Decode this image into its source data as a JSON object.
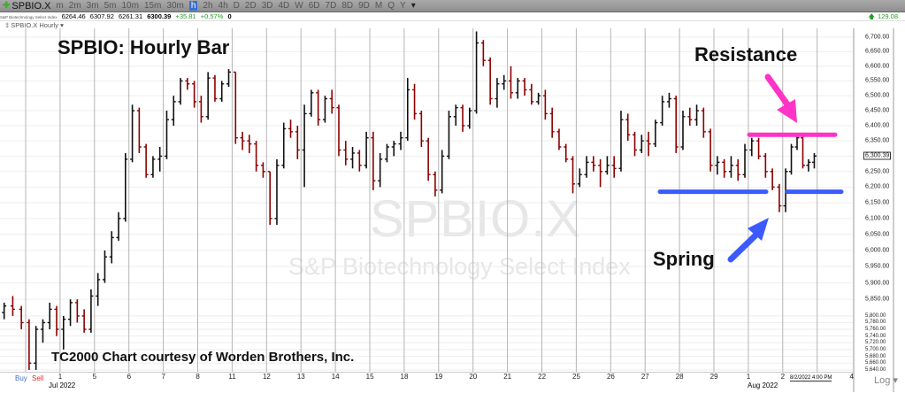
{
  "toolbar": {
    "symbol": "SPBIO.X",
    "timeframes": [
      "m",
      "2m",
      "3m",
      "5m",
      "10m",
      "15m",
      "30m",
      "h",
      "2h",
      "4h",
      "D",
      "2D",
      "3D",
      "4D",
      "W",
      "6D",
      "7D",
      "8D",
      "9D",
      "M",
      "Q",
      "Y"
    ],
    "active_timeframe": "h",
    "alert_value": "129.08"
  },
  "quote": {
    "name": "S&P Biotechnology Select Index",
    "open": "6264.46",
    "high": "6307.92",
    "low": "6261.31",
    "last": "6300.39",
    "change": "+35.81",
    "change_pct": "+0.57%",
    "volume": "0"
  },
  "chart_name": "SPBIO.X Hourly",
  "annotations": {
    "title": "SPBIO:  Hourly Bar",
    "resistance": "Resistance",
    "spring": "Spring",
    "credit": "TC2000 Chart courtesy of Worden Brothers, Inc."
  },
  "watermark": {
    "symbol": "SPBIO.X",
    "name": "S&P Biotechnology Select Index"
  },
  "footer": {
    "buy": "Buy",
    "sell": "Sell",
    "scale": "Log",
    "cursor_date": "8/2/2022 4:00 PM"
  },
  "colors": {
    "up_bar": "#111111",
    "down_bar": "#8b0000",
    "resistance": "#ff33c6",
    "support": "#3b5bff"
  },
  "chart_data": {
    "type": "ohlc",
    "title": "SPBIO:  Hourly Bar",
    "y_scale": "log",
    "ylim": [
      5640,
      6700
    ],
    "grid": true,
    "y_ticks": [
      "6,700.00",
      "6,650.00",
      "6,600.00",
      "6,550.00",
      "6,500.00",
      "6,450.00",
      "6,400.00",
      "6,350.00",
      "6,250.00",
      "6,200.00",
      "6,150.00",
      "6,100.00",
      "6,050.00",
      "6,000.00",
      "5,950.00",
      "5,900.00",
      "5,850.00",
      "5,800.00",
      "5,780.00",
      "5,760.00",
      "5,740.00",
      "5,720.00",
      "5,700.00",
      "5,680.00",
      "5,660.00",
      "5,640.00"
    ],
    "last_price_label": "6,300.39",
    "x_ticks": [
      "1",
      "5",
      "6",
      "7",
      "8",
      "11",
      "12",
      "13",
      "14",
      "15",
      "18",
      "19",
      "20",
      "21",
      "22",
      "25",
      "26",
      "27",
      "28",
      "29",
      "1",
      "2",
      "",
      "4"
    ],
    "x_month_labels": [
      "Jul 2022",
      "Aug 2022"
    ],
    "resistance_level": 6370,
    "support_level": 6185,
    "sessions": [
      [
        [
          5800,
          5830,
          5770,
          5810
        ],
        [
          5810,
          5840,
          5790,
          5830
        ],
        [
          5830,
          5860,
          5800,
          5820
        ],
        [
          5820,
          5830,
          5760,
          5780
        ]
      ],
      [
        [
          5780,
          5790,
          5640,
          5660
        ],
        [
          5660,
          5770,
          5640,
          5760
        ],
        [
          5760,
          5790,
          5720,
          5780
        ],
        [
          5780,
          5840,
          5760,
          5820
        ],
        [
          5820,
          5830,
          5740,
          5760
        ]
      ],
      [
        [
          5760,
          5800,
          5700,
          5790
        ],
        [
          5790,
          5850,
          5770,
          5840
        ],
        [
          5840,
          5850,
          5780,
          5800
        ],
        [
          5800,
          5820,
          5750,
          5760
        ],
        [
          5760,
          5880,
          5750,
          5860
        ]
      ],
      [
        [
          5860,
          5930,
          5830,
          5910
        ],
        [
          5910,
          6000,
          5900,
          5980
        ],
        [
          5980,
          6060,
          5960,
          6040
        ],
        [
          6040,
          6120,
          6030,
          6100
        ],
        [
          6100,
          6310,
          6090,
          6290
        ]
      ],
      [
        [
          6290,
          6470,
          6280,
          6450
        ],
        [
          6450,
          6460,
          6310,
          6330
        ],
        [
          6330,
          6340,
          6230,
          6240
        ],
        [
          6240,
          6300,
          6230,
          6290
        ],
        [
          6290,
          6330,
          6250,
          6300
        ]
      ],
      [
        [
          6300,
          6450,
          6290,
          6420
        ],
        [
          6420,
          6500,
          6400,
          6480
        ],
        [
          6480,
          6560,
          6470,
          6550
        ],
        [
          6550,
          6560,
          6520,
          6540
        ],
        [
          6540,
          6550,
          6460,
          6480
        ]
      ],
      [
        [
          6480,
          6500,
          6410,
          6430
        ],
        [
          6430,
          6580,
          6420,
          6560
        ],
        [
          6560,
          6570,
          6480,
          6490
        ],
        [
          6490,
          6550,
          6480,
          6540
        ],
        [
          6540,
          6590,
          6530,
          6580
        ]
      ],
      [
        [
          6580,
          6580,
          6340,
          6360
        ],
        [
          6360,
          6380,
          6320,
          6350
        ],
        [
          6350,
          6370,
          6310,
          6340
        ],
        [
          6340,
          6350,
          6250,
          6270
        ],
        [
          6270,
          6280,
          6230,
          6250
        ]
      ],
      [
        [
          6250,
          6250,
          6080,
          6100
        ],
        [
          6100,
          6290,
          6080,
          6270
        ],
        [
          6270,
          6410,
          6260,
          6390
        ],
        [
          6390,
          6420,
          6360,
          6380
        ],
        [
          6380,
          6400,
          6290,
          6320
        ]
      ],
      [
        [
          6320,
          6470,
          6200,
          6440
        ],
        [
          6440,
          6520,
          6430,
          6510
        ],
        [
          6510,
          6520,
          6400,
          6420
        ],
        [
          6420,
          6500,
          6410,
          6490
        ],
        [
          6490,
          6520,
          6440,
          6460
        ]
      ],
      [
        [
          6460,
          6470,
          6300,
          6320
        ],
        [
          6320,
          6350,
          6270,
          6290
        ],
        [
          6290,
          6330,
          6260,
          6310
        ],
        [
          6310,
          6320,
          6250,
          6270
        ],
        [
          6270,
          6380,
          6260,
          6360
        ]
      ],
      [
        [
          6360,
          6380,
          6190,
          6220
        ],
        [
          6220,
          6310,
          6200,
          6290
        ],
        [
          6290,
          6340,
          6280,
          6330
        ],
        [
          6330,
          6350,
          6300,
          6340
        ],
        [
          6340,
          6380,
          6320,
          6360
        ]
      ],
      [
        [
          6360,
          6560,
          6350,
          6520
        ],
        [
          6520,
          6540,
          6420,
          6440
        ],
        [
          6440,
          6450,
          6330,
          6350
        ],
        [
          6350,
          6360,
          6220,
          6240
        ],
        [
          6240,
          6250,
          6170,
          6190
        ]
      ],
      [
        [
          6190,
          6320,
          6180,
          6300
        ],
        [
          6300,
          6450,
          6290,
          6430
        ],
        [
          6430,
          6470,
          6400,
          6460
        ],
        [
          6460,
          6470,
          6380,
          6400
        ],
        [
          6400,
          6460,
          6390,
          6450
        ]
      ],
      [
        [
          6450,
          6720,
          6440,
          6680
        ],
        [
          6680,
          6690,
          6600,
          6620
        ],
        [
          6620,
          6630,
          6470,
          6490
        ],
        [
          6490,
          6560,
          6460,
          6540
        ],
        [
          6540,
          6570,
          6520,
          6550
        ]
      ],
      [
        [
          6550,
          6600,
          6490,
          6510
        ],
        [
          6510,
          6560,
          6490,
          6550
        ],
        [
          6550,
          6560,
          6500,
          6520
        ],
        [
          6520,
          6540,
          6470,
          6480
        ],
        [
          6480,
          6510,
          6470,
          6500
        ]
      ],
      [
        [
          6500,
          6520,
          6420,
          6440
        ],
        [
          6440,
          6460,
          6360,
          6380
        ],
        [
          6380,
          6390,
          6320,
          6330
        ],
        [
          6330,
          6340,
          6280,
          6290
        ],
        [
          6290,
          6300,
          6180,
          6210
        ]
      ],
      [
        [
          6210,
          6260,
          6200,
          6240
        ],
        [
          6240,
          6300,
          6230,
          6280
        ],
        [
          6280,
          6300,
          6250,
          6270
        ],
        [
          6270,
          6290,
          6200,
          6250
        ],
        [
          6250,
          6300,
          6240,
          6270
        ]
      ],
      [
        [
          6270,
          6300,
          6230,
          6260
        ],
        [
          6260,
          6450,
          6250,
          6420
        ],
        [
          6420,
          6440,
          6350,
          6370
        ],
        [
          6370,
          6380,
          6300,
          6320
        ],
        [
          6320,
          6370,
          6310,
          6350
        ]
      ],
      [
        [
          6350,
          6380,
          6300,
          6340
        ],
        [
          6340,
          6420,
          6330,
          6410
        ],
        [
          6410,
          6500,
          6400,
          6480
        ],
        [
          6480,
          6510,
          6460,
          6490
        ],
        [
          6490,
          6500,
          6310,
          6330
        ]
      ],
      [
        [
          6330,
          6450,
          6320,
          6430
        ],
        [
          6430,
          6460,
          6400,
          6420
        ],
        [
          6420,
          6470,
          6400,
          6450
        ],
        [
          6450,
          6460,
          6360,
          6380
        ],
        [
          6380,
          6390,
          6250,
          6270
        ]
      ],
      [
        [
          6270,
          6300,
          6240,
          6280
        ],
        [
          6280,
          6290,
          6230,
          6250
        ],
        [
          6250,
          6300,
          6230,
          6270
        ],
        [
          6270,
          6290,
          6220,
          6240
        ],
        [
          6240,
          6340,
          6230,
          6320
        ]
      ],
      [
        [
          6320,
          6360,
          6300,
          6350
        ],
        [
          6350,
          6360,
          6290,
          6300
        ],
        [
          6300,
          6310,
          6230,
          6250
        ],
        [
          6250,
          6260,
          6190,
          6200
        ],
        [
          6200,
          6210,
          6120,
          6140
        ]
      ],
      [
        [
          6140,
          6260,
          6120,
          6250
        ],
        [
          6250,
          6340,
          6240,
          6330
        ],
        [
          6330,
          6370,
          6320,
          6360
        ],
        [
          6360,
          6370,
          6260,
          6270
        ],
        [
          6270,
          6290,
          6250,
          6280
        ],
        [
          6280,
          6310,
          6260,
          6300.39
        ]
      ]
    ]
  }
}
